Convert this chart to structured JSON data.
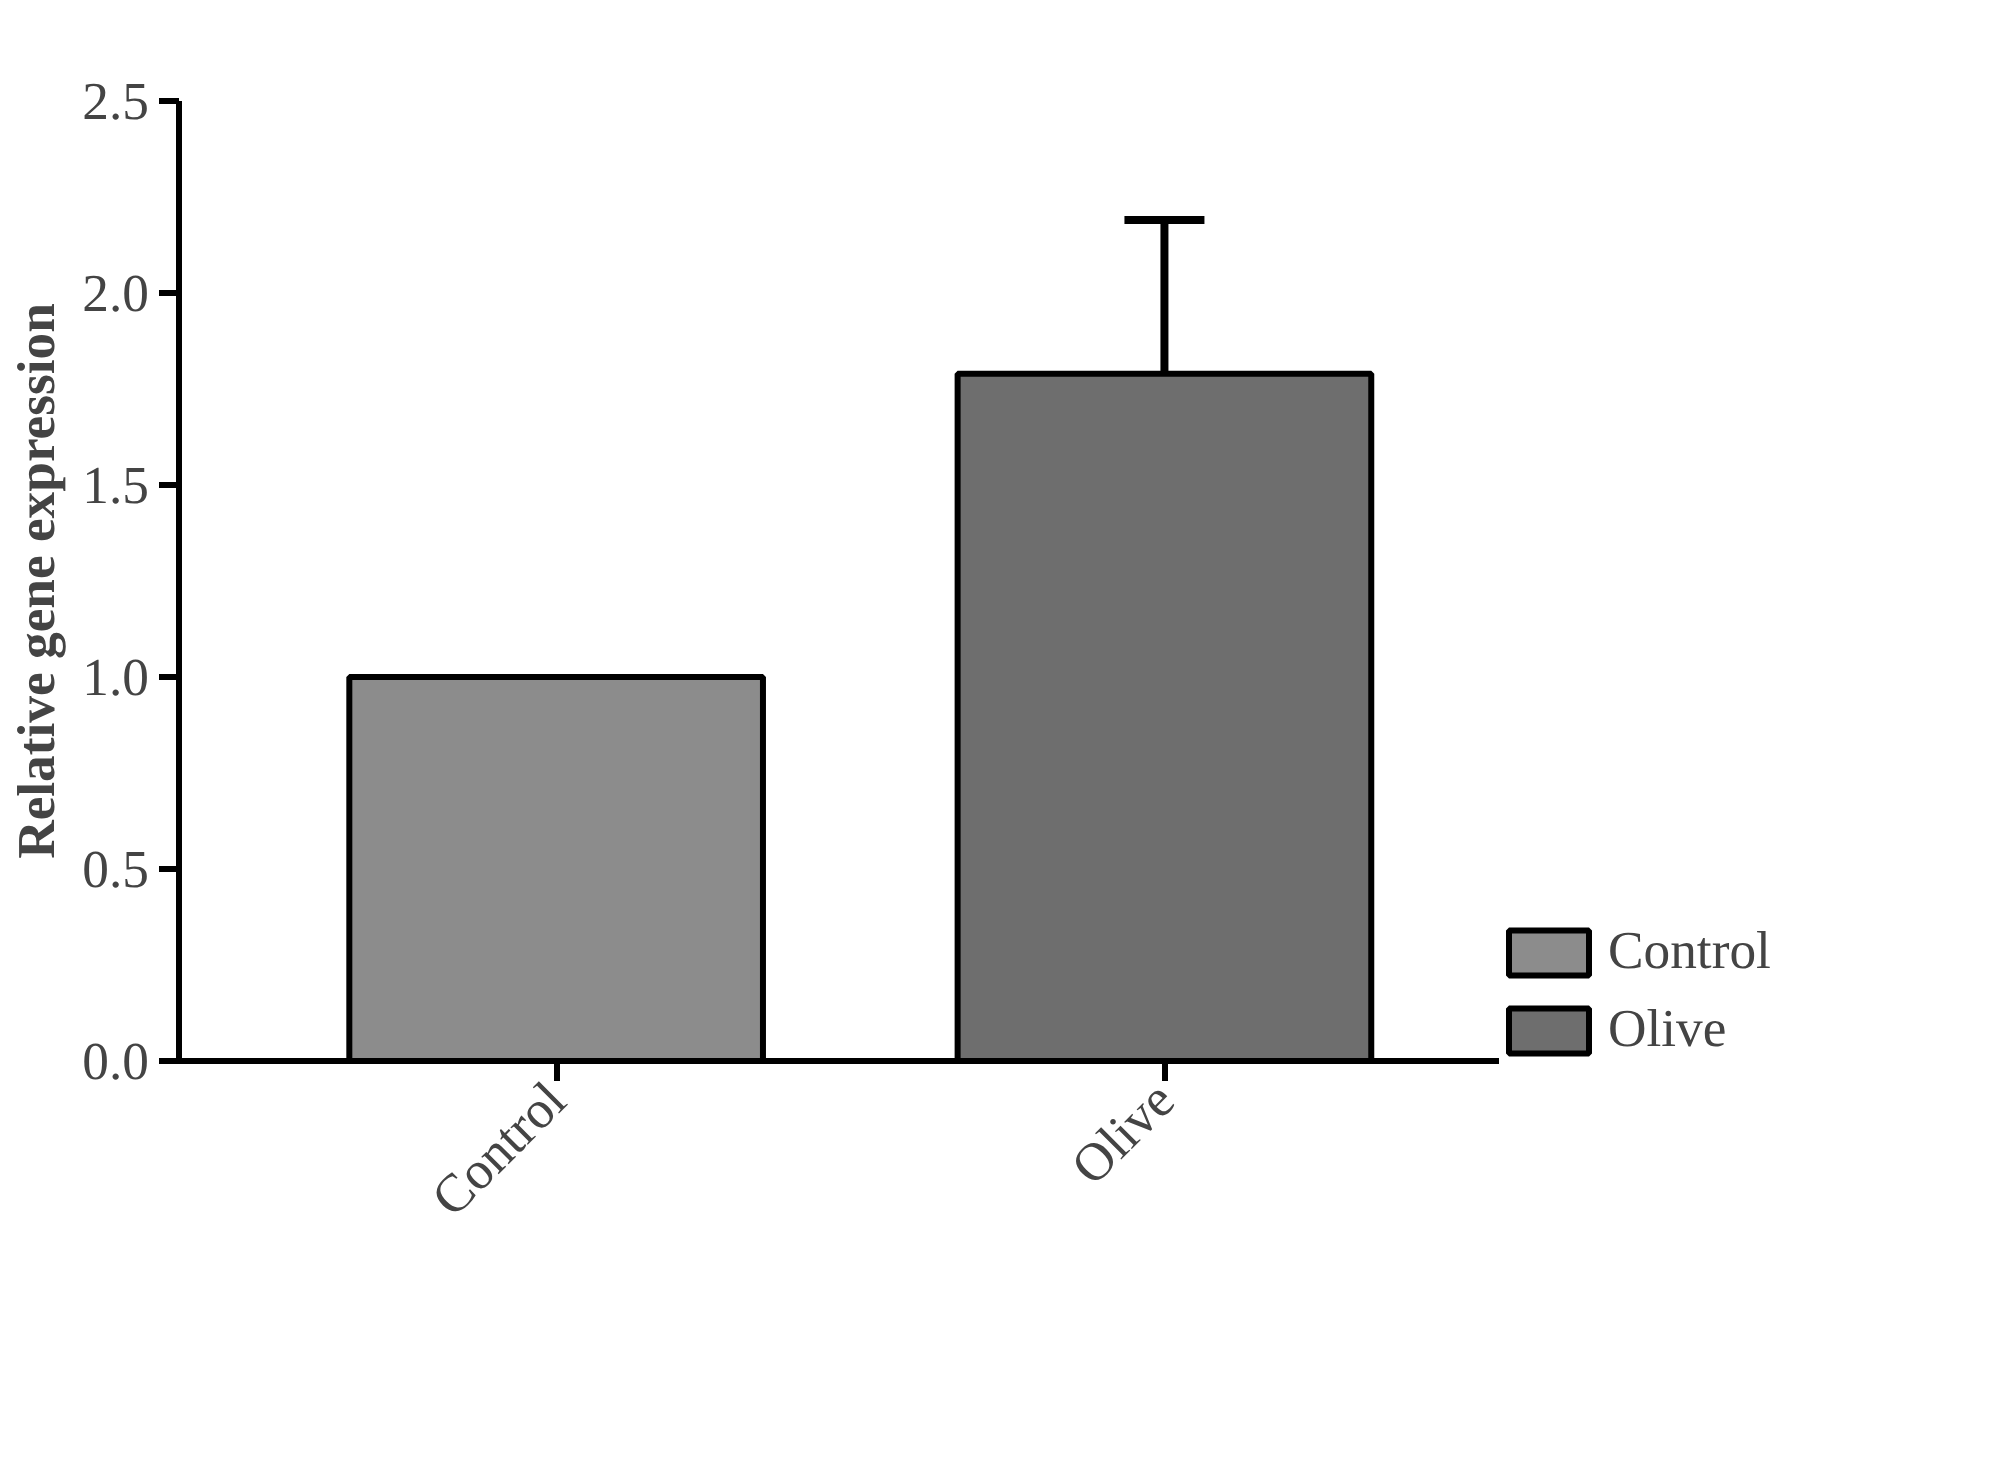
{
  "chart_data": {
    "type": "bar",
    "ylabel": "Relative gene expression",
    "categories": [
      "Control",
      "Olive"
    ],
    "series": [
      {
        "name": "Control",
        "color": "#8c8c8c",
        "values": [
          1.0,
          null
        ]
      },
      {
        "name": "Olive",
        "color": "#6e6e6e",
        "values": [
          null,
          1.79
        ],
        "errors": [
          null,
          [
            1.79,
            2.19
          ]
        ]
      }
    ],
    "ylim": [
      0,
      2.5
    ],
    "yticks": [
      {
        "value": 0,
        "label": "0.0"
      },
      {
        "value": 0.5,
        "label": "0.5"
      },
      {
        "value": 1,
        "label": "1.0"
      },
      {
        "value": 1.5,
        "label": "1.5"
      },
      {
        "value": 2,
        "label": "2.0"
      },
      {
        "value": 2.5,
        "label": "2.5"
      }
    ],
    "grid": false,
    "legend": "bottom right"
  }
}
